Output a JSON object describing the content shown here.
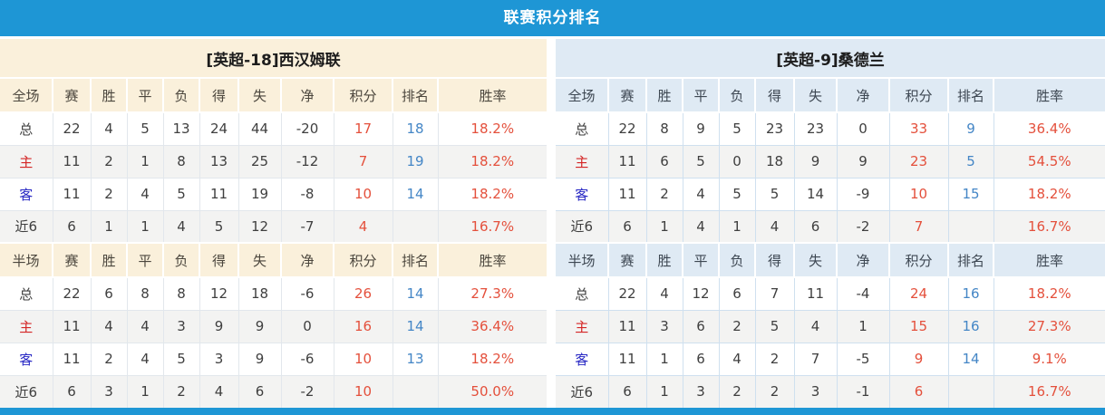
{
  "title": "联赛积分排名",
  "stat_columns": [
    "赛",
    "胜",
    "平",
    "负",
    "得",
    "失",
    "净"
  ],
  "points_col": "积分",
  "rank_col": "排名",
  "rate_col": "胜率",
  "sections": [
    {
      "key": "full",
      "first_col": "全场"
    },
    {
      "key": "half",
      "first_col": "半场"
    }
  ],
  "colors": {
    "title_bar": "#1e96d5",
    "left_header_bg": "#faf0db",
    "right_header_bg": "#dfeaf4",
    "points_text": "#e4503c",
    "rate_text": "#e4503c",
    "rank_text": "#4486c6",
    "home_label": "#d42626",
    "away_label": "#2929c4",
    "stripe_row": "#f3f3f2"
  },
  "teams": [
    {
      "name": "[英超-18]西汉姆联",
      "full": [
        {
          "type": "total",
          "label": "总",
          "values": [
            "22",
            "4",
            "5",
            "13",
            "24",
            "44",
            "-20"
          ],
          "points": "17",
          "rank": "18",
          "rate": "18.2%"
        },
        {
          "type": "home",
          "label": "主",
          "values": [
            "11",
            "2",
            "1",
            "8",
            "13",
            "25",
            "-12"
          ],
          "points": "7",
          "rank": "19",
          "rate": "18.2%"
        },
        {
          "type": "away",
          "label": "客",
          "values": [
            "11",
            "2",
            "4",
            "5",
            "11",
            "19",
            "-8"
          ],
          "points": "10",
          "rank": "14",
          "rate": "18.2%"
        },
        {
          "type": "last6",
          "label": "近6",
          "values": [
            "6",
            "1",
            "1",
            "4",
            "5",
            "12",
            "-7"
          ],
          "points": "4",
          "rank": "",
          "rate": "16.7%"
        }
      ],
      "half": [
        {
          "type": "total",
          "label": "总",
          "values": [
            "22",
            "6",
            "8",
            "8",
            "12",
            "18",
            "-6"
          ],
          "points": "26",
          "rank": "14",
          "rate": "27.3%"
        },
        {
          "type": "home",
          "label": "主",
          "values": [
            "11",
            "4",
            "4",
            "3",
            "9",
            "9",
            "0"
          ],
          "points": "16",
          "rank": "14",
          "rate": "36.4%"
        },
        {
          "type": "away",
          "label": "客",
          "values": [
            "11",
            "2",
            "4",
            "5",
            "3",
            "9",
            "-6"
          ],
          "points": "10",
          "rank": "13",
          "rate": "18.2%"
        },
        {
          "type": "last6",
          "label": "近6",
          "values": [
            "6",
            "3",
            "1",
            "2",
            "4",
            "6",
            "-2"
          ],
          "points": "10",
          "rank": "",
          "rate": "50.0%"
        }
      ]
    },
    {
      "name": "[英超-9]桑德兰",
      "full": [
        {
          "type": "total",
          "label": "总",
          "values": [
            "22",
            "8",
            "9",
            "5",
            "23",
            "23",
            "0"
          ],
          "points": "33",
          "rank": "9",
          "rate": "36.4%"
        },
        {
          "type": "home",
          "label": "主",
          "values": [
            "11",
            "6",
            "5",
            "0",
            "18",
            "9",
            "9"
          ],
          "points": "23",
          "rank": "5",
          "rate": "54.5%"
        },
        {
          "type": "away",
          "label": "客",
          "values": [
            "11",
            "2",
            "4",
            "5",
            "5",
            "14",
            "-9"
          ],
          "points": "10",
          "rank": "15",
          "rate": "18.2%"
        },
        {
          "type": "last6",
          "label": "近6",
          "values": [
            "6",
            "1",
            "4",
            "1",
            "4",
            "6",
            "-2"
          ],
          "points": "7",
          "rank": "",
          "rate": "16.7%"
        }
      ],
      "half": [
        {
          "type": "total",
          "label": "总",
          "values": [
            "22",
            "4",
            "12",
            "6",
            "7",
            "11",
            "-4"
          ],
          "points": "24",
          "rank": "16",
          "rate": "18.2%"
        },
        {
          "type": "home",
          "label": "主",
          "values": [
            "11",
            "3",
            "6",
            "2",
            "5",
            "4",
            "1"
          ],
          "points": "15",
          "rank": "16",
          "rate": "27.3%"
        },
        {
          "type": "away",
          "label": "客",
          "values": [
            "11",
            "1",
            "6",
            "4",
            "2",
            "7",
            "-5"
          ],
          "points": "9",
          "rank": "14",
          "rate": "9.1%"
        },
        {
          "type": "last6",
          "label": "近6",
          "values": [
            "6",
            "1",
            "3",
            "2",
            "2",
            "3",
            "-1"
          ],
          "points": "6",
          "rank": "",
          "rate": "16.7%"
        }
      ]
    }
  ]
}
